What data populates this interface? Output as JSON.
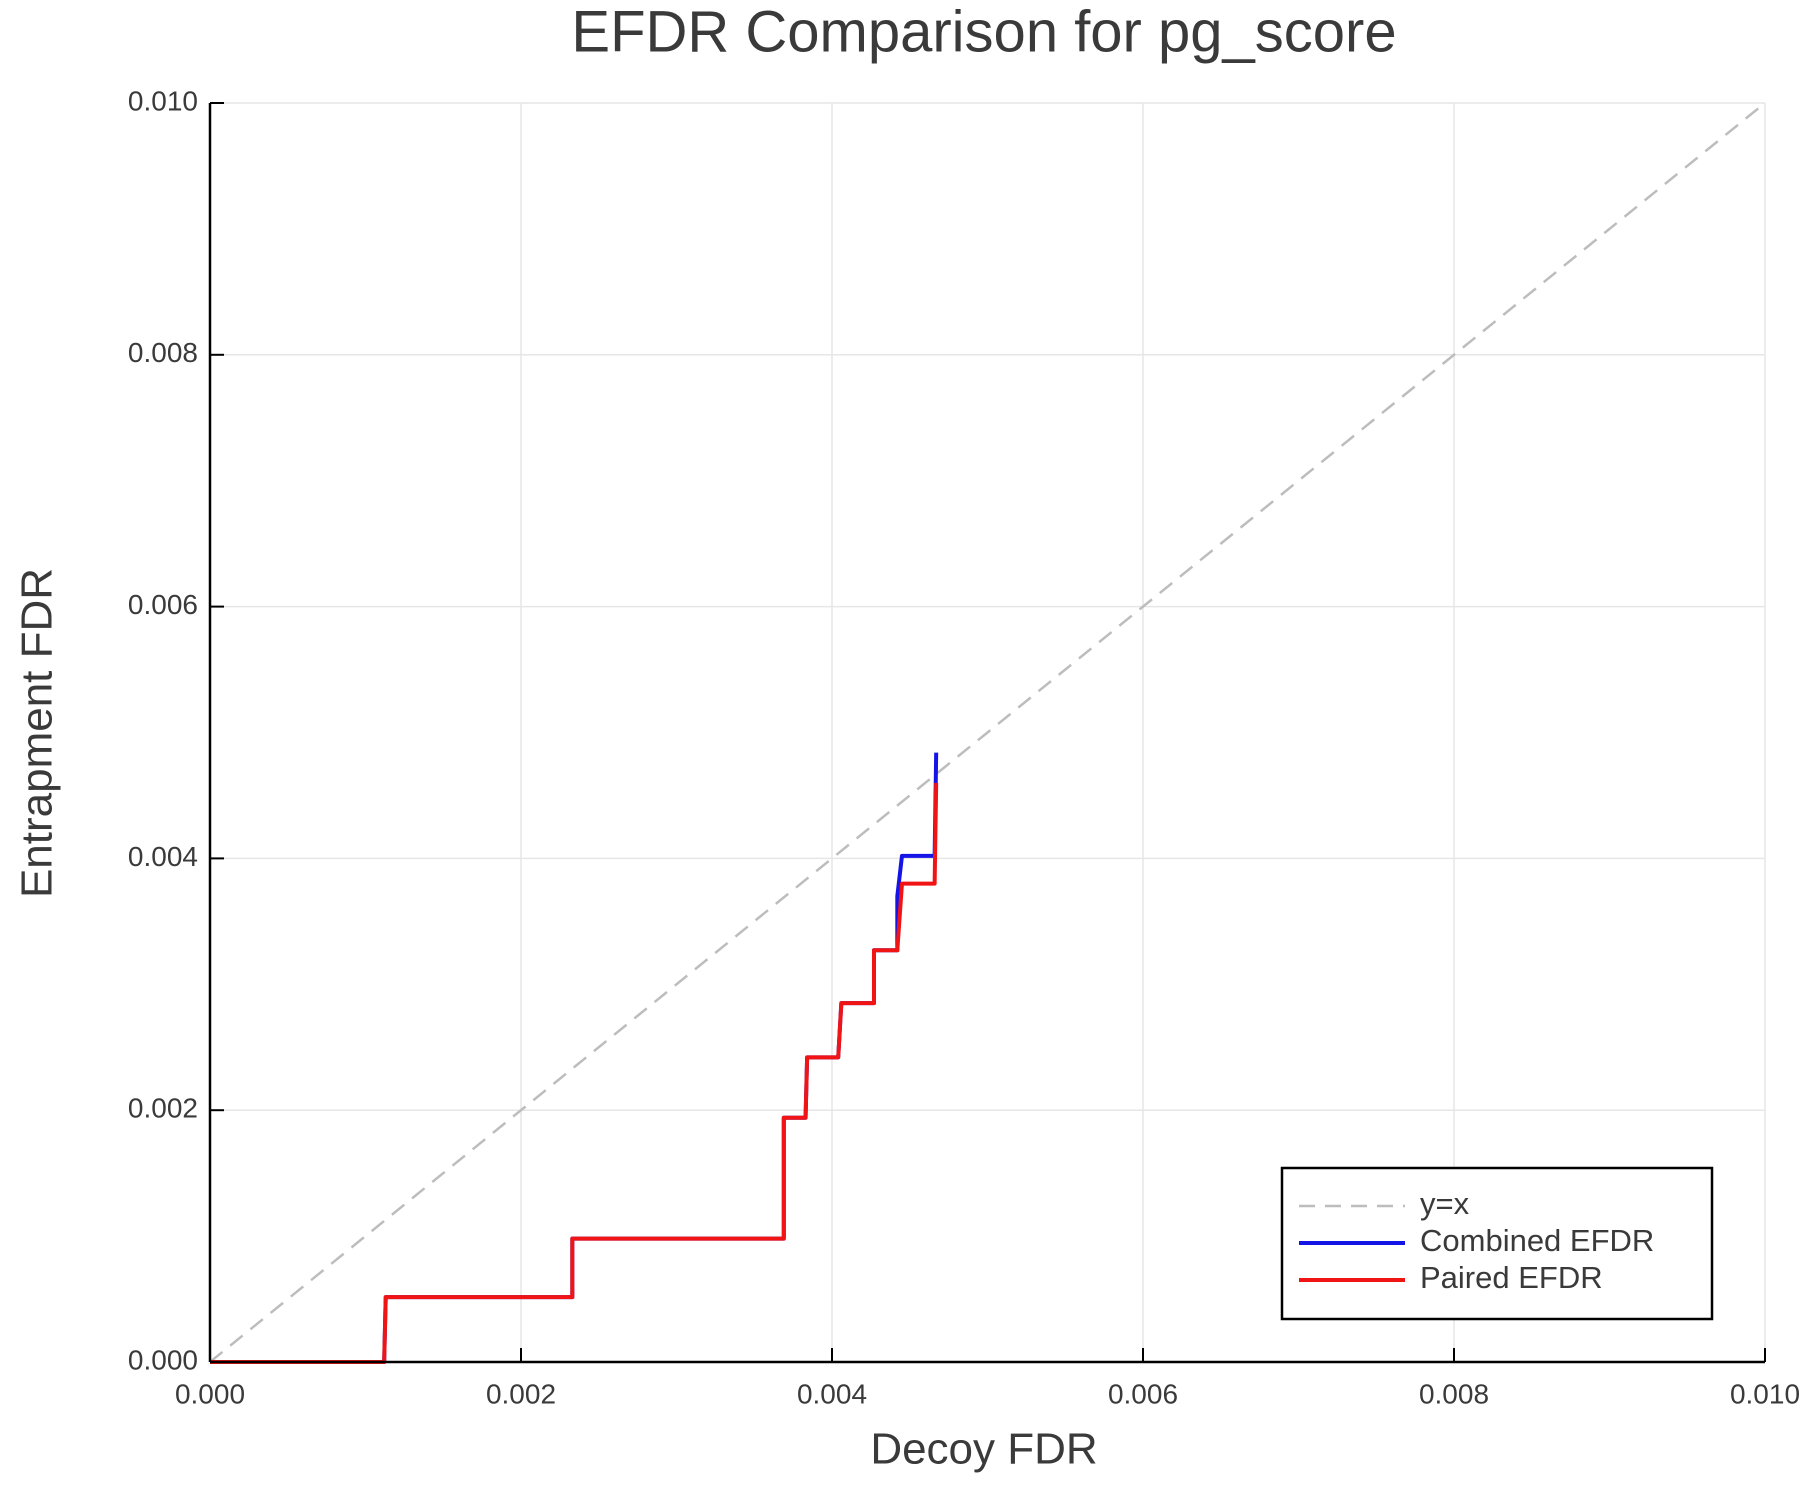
{
  "chart_data": {
    "type": "line",
    "title": "EFDR Comparison for pg_score",
    "x_label": "Decoy FDR",
    "y_label": "Entrapment FDR",
    "xlim": [
      0,
      0.01
    ],
    "ylim": [
      0,
      0.01
    ],
    "xticks": [
      {
        "value": 0,
        "label": "0.000"
      },
      {
        "value": 0.002,
        "label": "0.002"
      },
      {
        "value": 0.004,
        "label": "0.004"
      },
      {
        "value": 0.006,
        "label": "0.006"
      },
      {
        "value": 0.008,
        "label": "0.008"
      },
      {
        "value": 0.01,
        "label": "0.010"
      }
    ],
    "yticks": [
      {
        "value": 0,
        "label": "0.000"
      },
      {
        "value": 0.002,
        "label": "0.002"
      },
      {
        "value": 0.004,
        "label": "0.004"
      },
      {
        "value": 0.006,
        "label": "0.006"
      },
      {
        "value": 0.008,
        "label": "0.008"
      },
      {
        "value": 0.01,
        "label": "0.010"
      }
    ],
    "grid": true,
    "legend": "bottom right",
    "series": [
      {
        "name": "y=x",
        "color": "#bdbdbd",
        "dashed": true,
        "x": [
          0,
          0.01
        ],
        "values": [
          0,
          0.01
        ]
      },
      {
        "name": "Combined EFDR",
        "color": "#1414e6",
        "dashed": false,
        "x": [
          0,
          0.00112,
          0.00113,
          0.00233,
          0.00233,
          0.00369,
          0.00369,
          0.00383,
          0.00384,
          0.00404,
          0.00406,
          0.00427,
          0.00427,
          0.00442,
          0.00442,
          0.00445,
          0.00466,
          0.00467
        ],
        "values": [
          0,
          0,
          0.000515,
          0.000515,
          0.00098,
          0.00098,
          0.00194,
          0.00194,
          0.00242,
          0.00242,
          0.00285,
          0.00285,
          0.00327,
          0.00327,
          0.0037,
          0.00402,
          0.00402,
          0.00484
        ]
      },
      {
        "name": "Paired EFDR",
        "color": "#f01414",
        "dashed": false,
        "x": [
          0,
          0.00112,
          0.00113,
          0.00233,
          0.00233,
          0.00369,
          0.00369,
          0.00383,
          0.00384,
          0.00404,
          0.00406,
          0.00427,
          0.00427,
          0.00442,
          0.00445,
          0.00466,
          0.00467
        ],
        "values": [
          0,
          0,
          0.000515,
          0.000515,
          0.00098,
          0.00098,
          0.00194,
          0.00194,
          0.00242,
          0.00242,
          0.00285,
          0.00285,
          0.00327,
          0.00327,
          0.0038,
          0.0038,
          0.0046
        ]
      }
    ]
  }
}
